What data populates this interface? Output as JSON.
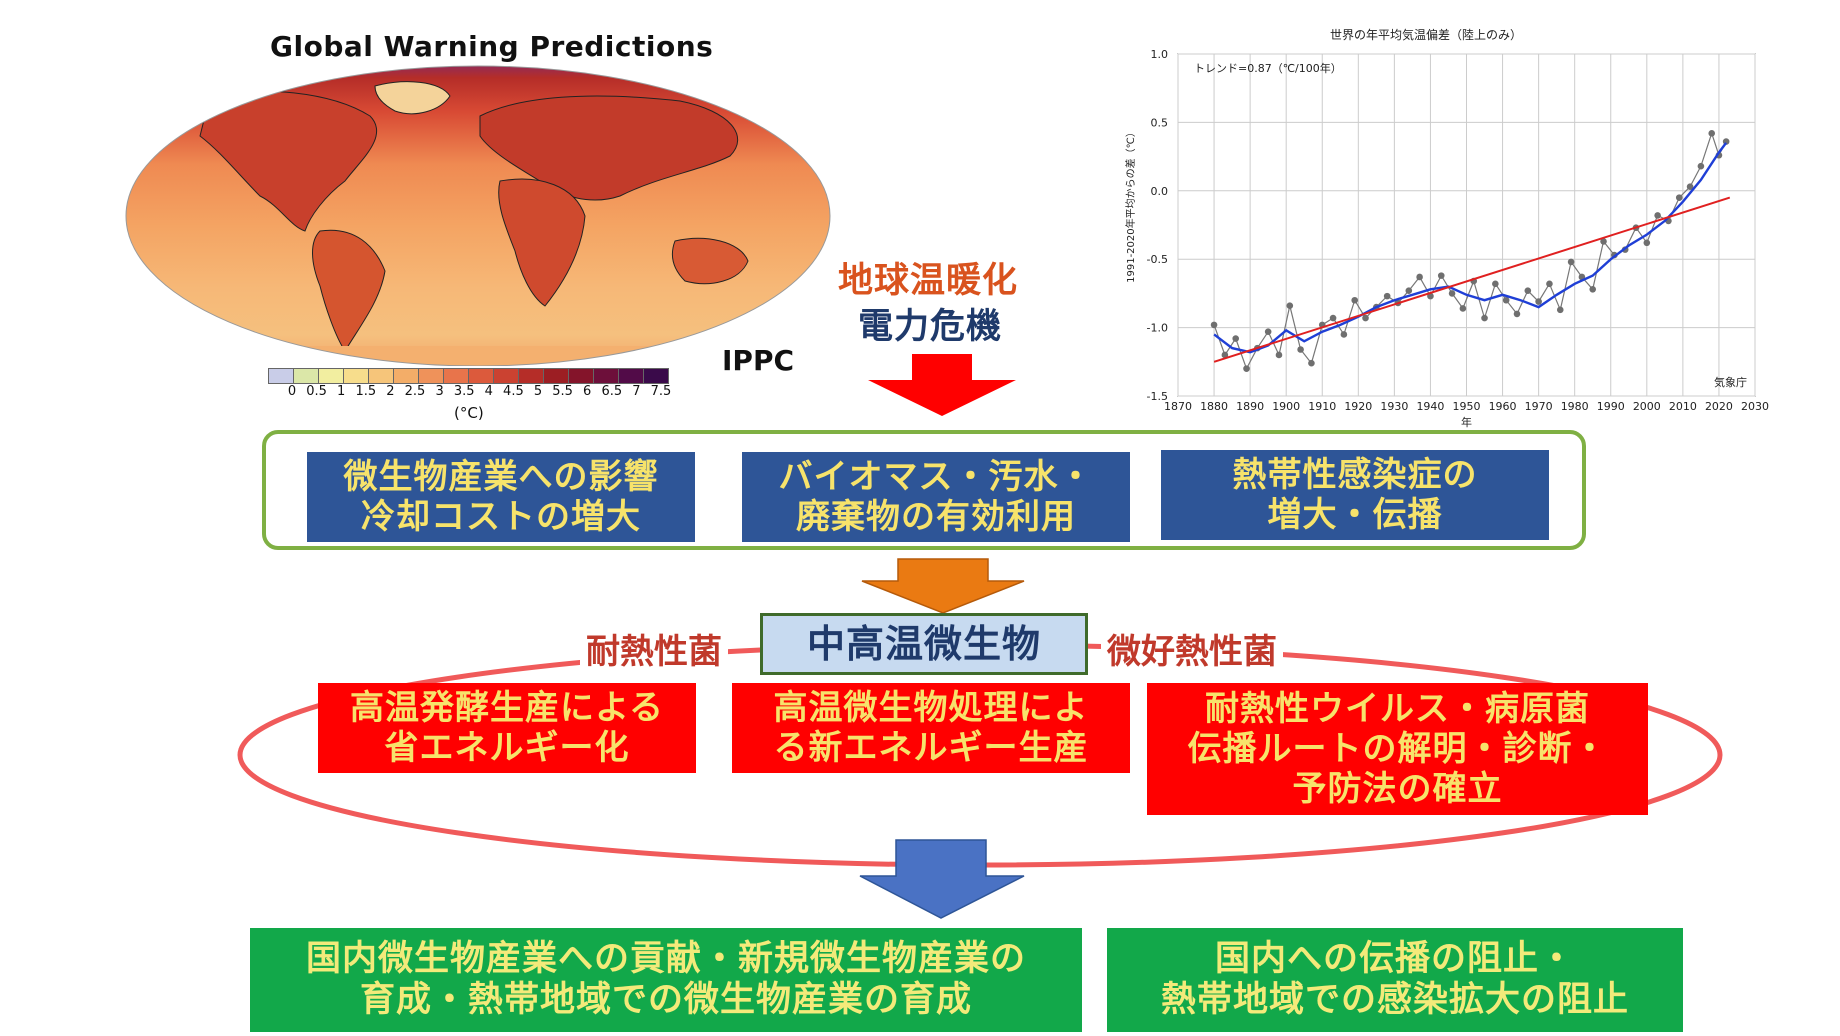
{
  "map": {
    "title": "Global Warning Predictions",
    "source": "IPPC",
    "colorbar_ticks": [
      "0",
      "0.5",
      "1",
      "1.5",
      "2",
      "2.5",
      "3",
      "3.5",
      "4",
      "4.5",
      "5",
      "5.5",
      "6",
      "6.5",
      "7",
      "7.5"
    ],
    "colorbar_unit": "(°C)",
    "colors": [
      "#c9cde8",
      "#dbe7a8",
      "#f2eea0",
      "#f7dd8c",
      "#f6c57a",
      "#f3ad68",
      "#ef925a",
      "#e8744b",
      "#dc5a3c",
      "#cb4231",
      "#b52d28",
      "#9c1e23",
      "#84142a",
      "#6d0f3a",
      "#520b48",
      "#3a0a4a"
    ]
  },
  "caption": {
    "line1": "地球温暖化",
    "line2": "電力危機"
  },
  "chart_data": {
    "type": "line",
    "title": "世界の年平均気温偏差（陸上のみ）",
    "annotation": "トレンド=0.87（℃/100年）",
    "ylabel": "1991-2020年平均からの差（℃）",
    "xlabel": "年",
    "source": "気象庁",
    "xlim": [
      1870,
      2030
    ],
    "ylim": [
      -1.5,
      1.0
    ],
    "x_ticks": [
      1870,
      1880,
      1890,
      1900,
      1910,
      1920,
      1930,
      1940,
      1950,
      1960,
      1970,
      1980,
      1990,
      2000,
      2010,
      2020,
      2030
    ],
    "y_ticks": [
      "1.0",
      "0.5",
      "0.0",
      "-0.5",
      "-1.0",
      "-1.5"
    ],
    "series": [
      {
        "name": "",
        "color": "#777777",
        "x": [
          1880,
          1883,
          1886,
          1889,
          1892,
          1895,
          1898,
          1901,
          1904,
          1907,
          1910,
          1913,
          1916,
          1919,
          1922,
          1925,
          1928,
          1931,
          1934,
          1937,
          1940,
          1943,
          1946,
          1949,
          1952,
          1955,
          1958,
          1961,
          1964,
          1967,
          1970,
          1973,
          1976,
          1979,
          1982,
          1985,
          1988,
          1991,
          1994,
          1997,
          2000,
          2003,
          2006,
          2009,
          2012,
          2015,
          2018,
          2020,
          2022
        ],
        "y": [
          -0.98,
          -1.2,
          -1.08,
          -1.3,
          -1.15,
          -1.03,
          -1.2,
          -0.84,
          -1.16,
          -1.26,
          -0.98,
          -0.93,
          -1.05,
          -0.8,
          -0.93,
          -0.85,
          -0.77,
          -0.82,
          -0.73,
          -0.63,
          -0.77,
          -0.62,
          -0.75,
          -0.86,
          -0.66,
          -0.93,
          -0.68,
          -0.8,
          -0.9,
          -0.73,
          -0.81,
          -0.68,
          -0.87,
          -0.52,
          -0.63,
          -0.72,
          -0.37,
          -0.47,
          -0.43,
          -0.27,
          -0.38,
          -0.18,
          -0.22,
          -0.05,
          0.03,
          0.18,
          0.42,
          0.26,
          0.36
        ]
      },
      {
        "name": "",
        "color": "#1f3fd6",
        "x": [
          1880,
          1885,
          1890,
          1895,
          1900,
          1905,
          1910,
          1915,
          1920,
          1925,
          1930,
          1935,
          1940,
          1945,
          1950,
          1955,
          1960,
          1965,
          1970,
          1975,
          1980,
          1985,
          1990,
          1995,
          2000,
          2005,
          2010,
          2015,
          2020,
          2022
        ],
        "y": [
          -1.05,
          -1.15,
          -1.18,
          -1.13,
          -1.02,
          -1.1,
          -1.03,
          -0.98,
          -0.92,
          -0.85,
          -0.8,
          -0.76,
          -0.72,
          -0.7,
          -0.76,
          -0.8,
          -0.76,
          -0.8,
          -0.85,
          -0.76,
          -0.68,
          -0.62,
          -0.5,
          -0.4,
          -0.32,
          -0.22,
          -0.08,
          0.08,
          0.28,
          0.35
        ]
      },
      {
        "name": "",
        "color": "#e02020",
        "x": [
          1880,
          2023
        ],
        "y": [
          -1.25,
          -0.05
        ]
      }
    ]
  },
  "row1": [
    {
      "line1": "微生物産業への影響",
      "line2": "冷却コストの増大"
    },
    {
      "line1": "バイオマス・汚水・",
      "line2": "廃棄物の有効利用"
    },
    {
      "line1": "熱帯性感染症の",
      "line2": "増大・伝播"
    }
  ],
  "center": {
    "label": "中高温微生物",
    "left_label": "耐熱性菌",
    "right_label": "微好熱性菌"
  },
  "row2": [
    {
      "line1": "高温発酵生産による",
      "line2": "省エネルギー化"
    },
    {
      "line1": "高温微生物処理によ",
      "line2": "る新エネルギー生産"
    },
    {
      "line1": "耐熱性ウイルス・病原菌",
      "line2": "伝播ルートの解明・診断・",
      "line3": "予防法の確立"
    }
  ],
  "row3": [
    {
      "line1": "国内微生物産業への貢献・新規微生物産業の",
      "line2": "育成・熱帯地域での微生物産業の育成"
    },
    {
      "line1": "国内への伝播の阻止・",
      "line2": "熱帯地域での感染拡大の阻止"
    }
  ]
}
